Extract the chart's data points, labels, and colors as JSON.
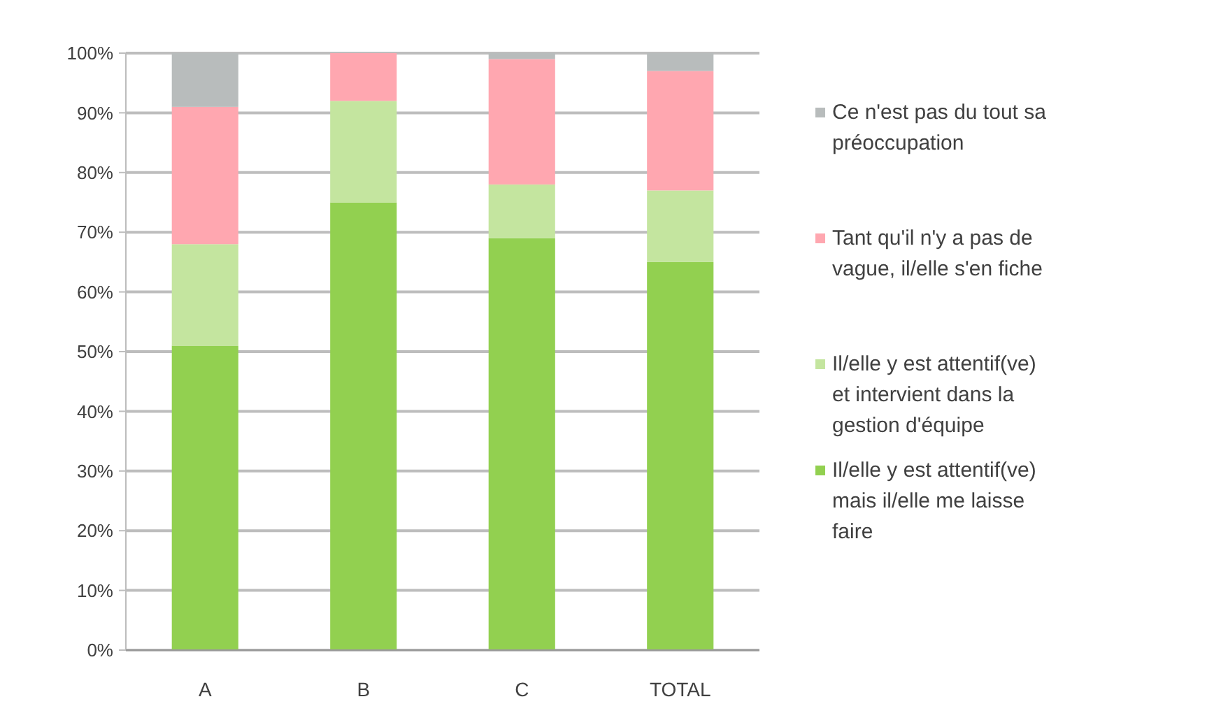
{
  "chart_data": {
    "type": "bar",
    "stacked": true,
    "categories": [
      "A",
      "B",
      "C",
      "TOTAL"
    ],
    "series": [
      {
        "name": "Il/elle y est attentif(ve) mais il/elle me laisse faire",
        "color": "#92d050",
        "values": [
          51,
          75,
          69,
          65
        ]
      },
      {
        "name": "Il/elle y est attentif(ve) et intervient dans la gestion d'équipe",
        "color": "#c4e59f",
        "values": [
          17,
          17,
          9,
          12
        ]
      },
      {
        "name": "Tant qu'il n'y a pas de vague, il/elle s'en fiche",
        "color": "#ffa7b0",
        "values": [
          23,
          8,
          21,
          20
        ]
      },
      {
        "name": "Ce n'est pas du tout sa préoccupation",
        "color": "#b8bcbc",
        "values": [
          9,
          0,
          1,
          3
        ]
      }
    ],
    "ylim": [
      0,
      100
    ],
    "yticks": [
      {
        "value": 0,
        "label": "0%"
      },
      {
        "value": 10,
        "label": "10%"
      },
      {
        "value": 20,
        "label": "20%"
      },
      {
        "value": 30,
        "label": "30%"
      },
      {
        "value": 40,
        "label": "40%"
      },
      {
        "value": 50,
        "label": "50%"
      },
      {
        "value": 60,
        "label": "60%"
      },
      {
        "value": 70,
        "label": "70%"
      },
      {
        "value": 80,
        "label": "80%"
      },
      {
        "value": 90,
        "label": "90%"
      },
      {
        "value": 100,
        "label": "100%"
      }
    ],
    "grid": "y",
    "legend": "right"
  }
}
